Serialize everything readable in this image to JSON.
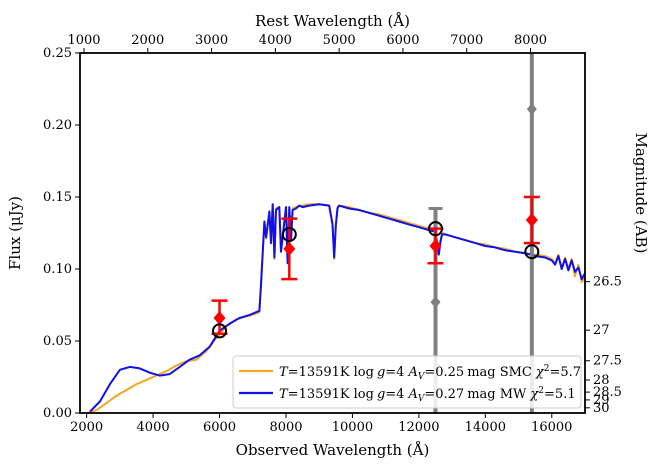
{
  "chart_data": {
    "type": "line",
    "title": "",
    "xlabel": "Observed Wavelength (Å)",
    "ylabel": "Flux (μJy)",
    "top_xlabel": "Rest Wavelength (Å)",
    "right_ylabel": "Magnitude (AB)",
    "xlim": [
      1800,
      17000
    ],
    "ylim": [
      0,
      0.25
    ],
    "x_ticks": [
      2000,
      4000,
      6000,
      8000,
      10000,
      12000,
      14000,
      16000
    ],
    "y_ticks": [
      0.0,
      0.05,
      0.1,
      0.15,
      0.2,
      0.25
    ],
    "top_ticks": [
      1000,
      2000,
      3000,
      4000,
      5000,
      6000,
      7000,
      8000
    ],
    "top_tick_observed": [
      1920,
      3840,
      5760,
      7680,
      9600,
      11520,
      13440,
      15360
    ],
    "right_ticks": [
      "26.5",
      "27",
      "27.5",
      "28",
      "28.5",
      "29",
      "30"
    ],
    "right_tick_flux": [
      0.0912,
      0.0575,
      0.0363,
      0.0229,
      0.0145,
      0.0091,
      0.0036
    ],
    "series": [
      {
        "name": "T=13591K log g=4 A_V=0.27 mag MW χ²=5.1",
        "color": "#1010e8",
        "x": [
          2100,
          2400,
          2700,
          3000,
          3300,
          3600,
          3900,
          4200,
          4500,
          4800,
          5100,
          5400,
          5700,
          6000,
          6300,
          6600,
          6900,
          7200,
          7250,
          7350,
          7400,
          7500,
          7550,
          7600,
          7650,
          7700,
          7800,
          7850,
          8000,
          8050,
          8100,
          8150,
          8200,
          8300,
          8400,
          8500,
          8700,
          9000,
          9300,
          9400,
          9450,
          9500,
          9550,
          9600,
          9900,
          10200,
          10500,
          10800,
          11100,
          11400,
          11700,
          12000,
          12300,
          12500,
          12600,
          12650,
          12700,
          12800,
          13100,
          13400,
          13700,
          14000,
          14300,
          14600,
          14900,
          15200,
          15500,
          15800,
          16000,
          16100,
          16200,
          16300,
          16400,
          16500,
          16600,
          16700,
          16800,
          16900,
          17000
        ],
        "y": [
          0.001,
          0.008,
          0.02,
          0.03,
          0.032,
          0.031,
          0.028,
          0.026,
          0.027,
          0.032,
          0.037,
          0.04,
          0.046,
          0.057,
          0.062,
          0.066,
          0.068,
          0.071,
          0.09,
          0.133,
          0.122,
          0.14,
          0.118,
          0.145,
          0.108,
          0.141,
          0.143,
          0.112,
          0.143,
          0.104,
          0.143,
          0.12,
          0.141,
          0.142,
          0.144,
          0.143,
          0.144,
          0.145,
          0.144,
          0.131,
          0.108,
          0.13,
          0.142,
          0.144,
          0.142,
          0.141,
          0.139,
          0.137,
          0.135,
          0.133,
          0.131,
          0.129,
          0.127,
          0.126,
          0.11,
          0.119,
          0.124,
          0.124,
          0.122,
          0.12,
          0.118,
          0.116,
          0.115,
          0.113,
          0.112,
          0.111,
          0.109,
          0.108,
          0.106,
          0.103,
          0.109,
          0.1,
          0.107,
          0.099,
          0.106,
          0.098,
          0.101,
          0.093,
          0.097
        ]
      },
      {
        "name": "T=13591K log g=4 A_V=0.25 mag SMC χ²=5.7",
        "color": "#f5a623",
        "x": [
          2000,
          2300,
          2600,
          2900,
          3200,
          3500,
          3800,
          4100,
          4400,
          4700,
          5000,
          5300,
          5600,
          5900,
          6200,
          6500,
          6800,
          7100,
          7200,
          7250,
          7350,
          7400,
          7500,
          7550,
          7600,
          7650,
          7700,
          7800,
          7850,
          8000,
          8050,
          8100,
          8150,
          8200,
          8300,
          8400,
          8500,
          8700,
          9000,
          9300,
          9400,
          9450,
          9500,
          9550,
          9600,
          9900,
          10200,
          10500,
          10800,
          11100,
          11400,
          11700,
          12000,
          12300,
          12500,
          12600,
          12650,
          12700,
          12800,
          13100,
          13400,
          13700,
          14000,
          14300,
          14600,
          14900,
          15200,
          15500,
          15800,
          16000,
          16100,
          16200,
          16300,
          16400,
          16500,
          16600,
          16700,
          16800,
          16900,
          17000
        ],
        "y": [
          0.0,
          0.002,
          0.007,
          0.012,
          0.016,
          0.02,
          0.023,
          0.026,
          0.029,
          0.033,
          0.036,
          0.037,
          0.043,
          0.052,
          0.06,
          0.065,
          0.067,
          0.069,
          0.07,
          0.092,
          0.133,
          0.121,
          0.139,
          0.119,
          0.145,
          0.107,
          0.142,
          0.143,
          0.112,
          0.143,
          0.105,
          0.142,
          0.121,
          0.142,
          0.143,
          0.144,
          0.144,
          0.145,
          0.145,
          0.144,
          0.132,
          0.107,
          0.131,
          0.143,
          0.144,
          0.143,
          0.141,
          0.139,
          0.138,
          0.136,
          0.134,
          0.132,
          0.13,
          0.128,
          0.127,
          0.112,
          0.12,
          0.125,
          0.124,
          0.122,
          0.12,
          0.118,
          0.117,
          0.115,
          0.114,
          0.112,
          0.111,
          0.11,
          0.109,
          0.107,
          0.104,
          0.11,
          0.101,
          0.108,
          0.1,
          0.107,
          0.095,
          0.103,
          0.091,
          0.094
        ]
      }
    ],
    "red_points": [
      {
        "x": 6000,
        "y": 0.066,
        "lo": 0.055,
        "hi": 0.078
      },
      {
        "x": 8100,
        "y": 0.114,
        "lo": 0.093,
        "hi": 0.135
      },
      {
        "x": 12500,
        "y": 0.116,
        "lo": 0.104,
        "hi": 0.128
      },
      {
        "x": 15400,
        "y": 0.134,
        "lo": 0.118,
        "hi": 0.15
      }
    ],
    "gray_points": [
      {
        "x": 12500,
        "y": 0.077,
        "lo": 0.0,
        "hi": 0.142
      },
      {
        "x": 15400,
        "y": 0.211,
        "lo": 0.0,
        "hi": 0.25
      }
    ],
    "model_points": [
      {
        "x": 6000,
        "y": 0.057
      },
      {
        "x": 8100,
        "y": 0.124
      },
      {
        "x": 12500,
        "y": 0.128
      },
      {
        "x": 15400,
        "y": 0.112
      }
    ],
    "legend": {
      "location": "lower-right",
      "entries": [
        {
          "T": "T",
          "Tval": "=13591K",
          "log": "log",
          "g": "g",
          "gval": "=4",
          "A": "A",
          "Asub": "V",
          "Aval": "=0.25",
          "unit": "mag SMC",
          "chi": "χ",
          "chisup": "2",
          "chival": "=5.7"
        },
        {
          "T": "T",
          "Tval": "=13591K",
          "log": "log",
          "g": "g",
          "gval": "=4",
          "A": "A",
          "Asub": "V",
          "Aval": "=0.27",
          "unit": "mag MW",
          "chi": "χ",
          "chisup": "2",
          "chival": "=5.1"
        }
      ]
    }
  }
}
